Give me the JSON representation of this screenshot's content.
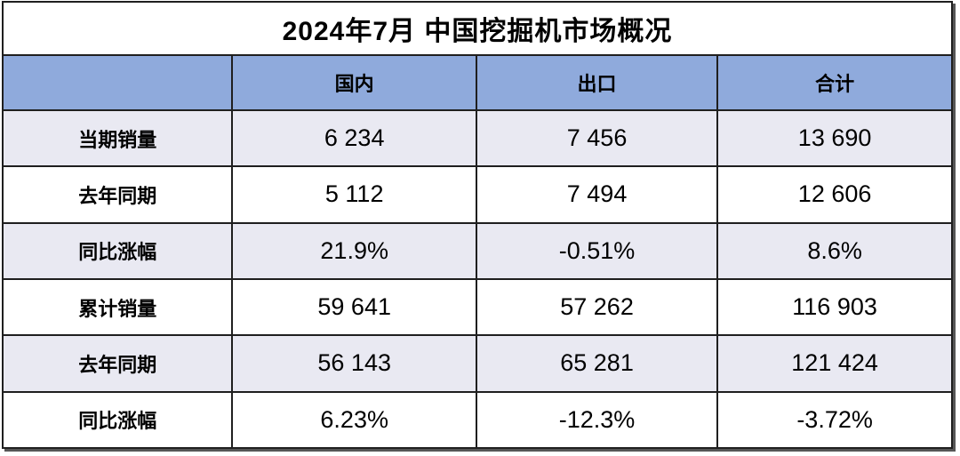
{
  "chart_data": {
    "type": "table",
    "title": "2024年7月 中国挖掘机市场概况",
    "columns": [
      "",
      "国内",
      "出口",
      "合计"
    ],
    "rows": [
      {
        "label": "当期销量",
        "values": [
          "6 234",
          "7 456",
          "13 690"
        ]
      },
      {
        "label": "去年同期",
        "values": [
          "5 112",
          "7 494",
          "12 606"
        ]
      },
      {
        "label": "同比涨幅",
        "values": [
          "21.9%",
          "-0.51%",
          "8.6%"
        ]
      },
      {
        "label": "累计销量",
        "values": [
          "59 641",
          "57 262",
          "116 903"
        ]
      },
      {
        "label": "去年同期",
        "values": [
          "56 143",
          "65 281",
          "121 424"
        ]
      },
      {
        "label": "同比涨幅",
        "values": [
          "6.23%",
          "-12.3%",
          "-3.72%"
        ]
      }
    ]
  },
  "colors": {
    "header_bg": "#8FAADC",
    "row_alt_bg": "#E9E9F2",
    "row_bg": "#FFFFFF",
    "border": "#1F1F1F",
    "text": "#000000"
  }
}
